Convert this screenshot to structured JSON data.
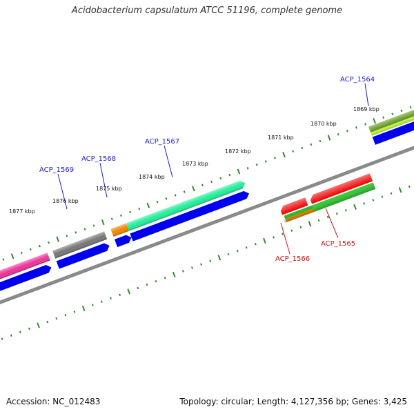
{
  "title": "Acidobacterium capsulatum ATCC 51196, complete genome",
  "footer": {
    "accession": "Accession: NC_012483",
    "summary": "Topology: circular; Length: 4,127,356 bp; Genes: 3,425"
  },
  "colors": {
    "backbone": "#8a8a8a",
    "ticks": "#2e8b2e",
    "forward_label": "#1a1acc",
    "reverse_label": "#cc1111"
  },
  "ticks": [
    {
      "label": "1877 kbp",
      "kbp": 1877
    },
    {
      "label": "1876 kbp",
      "kbp": 1876
    },
    {
      "label": "1875 kbp",
      "kbp": 1875
    },
    {
      "label": "1874 kbp",
      "kbp": 1874
    },
    {
      "label": "1873 kbp",
      "kbp": 1873
    },
    {
      "label": "1872 kbp",
      "kbp": 1872
    },
    {
      "label": "1871 kbp",
      "kbp": 1871
    },
    {
      "label": "1870 kbp",
      "kbp": 1870
    },
    {
      "label": "1869 kbp",
      "kbp": 1869
    }
  ],
  "gene_labels": [
    {
      "name": "ACP_1564",
      "strand": "forward"
    },
    {
      "name": "ACP_1567",
      "strand": "forward"
    },
    {
      "name": "ACP_1568",
      "strand": "forward"
    },
    {
      "name": "ACP_1569",
      "strand": "forward"
    },
    {
      "name": "ACP_1566",
      "strand": "reverse"
    },
    {
      "name": "ACP_1565",
      "strand": "reverse"
    }
  ],
  "feature_colors": {
    "cds": "#0000ee",
    "ACP_1569": "#777777",
    "left_pink": "#ee3399",
    "ACP_1568": "#ee8800",
    "ACP_1567": "#22ee99",
    "ACP_1564_top": "#669922",
    "ACP_1564_mid": "#ccff44",
    "ACP_1566_top": "#ee0000",
    "ACP_1566_mid": "#22bb22",
    "ACP_1566_low": "#ee8800",
    "ACP_1565_top": "#ee0000",
    "ACP_1565_low": "#33cc33"
  }
}
